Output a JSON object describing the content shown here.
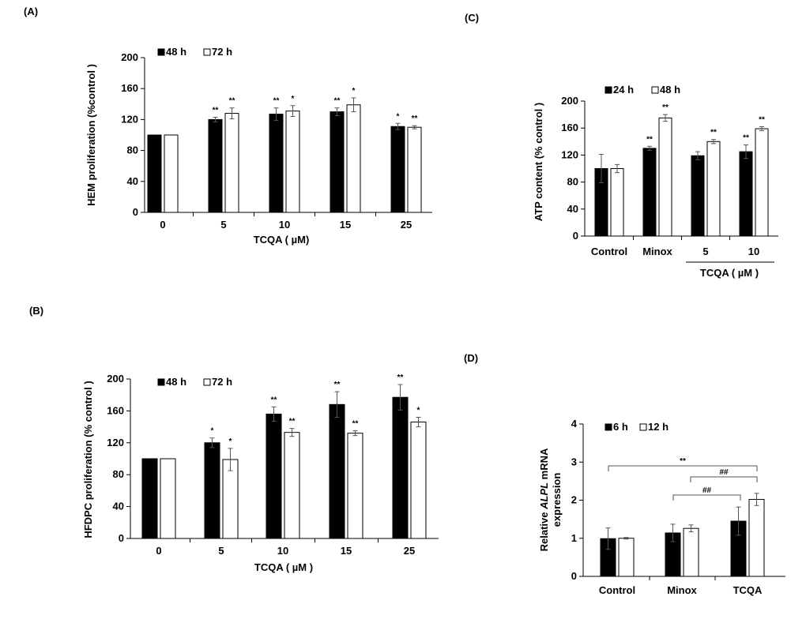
{
  "figure_labels": [
    "(A)",
    "(B)",
    "(C)",
    "(D)"
  ],
  "colors": {
    "series_filled": "#000000",
    "series_open": "#ffffff",
    "outline": "#000000"
  },
  "chart_data": [
    {
      "id": "A",
      "label": "(A)",
      "type": "bar",
      "categories": [
        "0",
        "5",
        "10",
        "15",
        "25"
      ],
      "xlabel": "TCQA ( µM)",
      "ylabel": "HEM proliferation (%control )",
      "ylim": [
        0,
        200
      ],
      "yticks": [
        "0",
        "40",
        "80",
        "120",
        "160",
        "200"
      ],
      "legend": [
        "48 h",
        "72 h"
      ],
      "series": [
        {
          "name": "48 h",
          "values": [
            100,
            120,
            127,
            130,
            111
          ],
          "errors": [
            0,
            3,
            8,
            5,
            4
          ],
          "sig": [
            "",
            "**",
            "**",
            "**",
            "*"
          ]
        },
        {
          "name": "72 h",
          "values": [
            100,
            128,
            131,
            139,
            110
          ],
          "errors": [
            0,
            7,
            7,
            9,
            2
          ],
          "sig": [
            "",
            "**",
            "*",
            "*",
            "**"
          ]
        }
      ]
    },
    {
      "id": "B",
      "label": "(B)",
      "type": "bar",
      "categories": [
        "0",
        "5",
        "10",
        "15",
        "25"
      ],
      "xlabel": "TCQA ( µM )",
      "ylabel": "HFDPC  proliferation (% control )",
      "ylim": [
        0,
        200
      ],
      "yticks": [
        "0",
        "40",
        "80",
        "120",
        "160",
        "200"
      ],
      "legend": [
        "48 h",
        "72 h"
      ],
      "series": [
        {
          "name": "48 h",
          "values": [
            100,
            120,
            156,
            168,
            177
          ],
          "errors": [
            0,
            6,
            9,
            16,
            16
          ],
          "sig": [
            "",
            "*",
            "**",
            "**",
            "**"
          ]
        },
        {
          "name": "72 h",
          "values": [
            100,
            99,
            133,
            132,
            146
          ],
          "errors": [
            0,
            14,
            5,
            3,
            6
          ],
          "sig": [
            "",
            "*",
            "**",
            "**",
            "*"
          ]
        }
      ]
    },
    {
      "id": "C",
      "label": "(C)",
      "type": "bar",
      "categories": [
        "Control",
        "Minox",
        "5",
        "10"
      ],
      "group_label": "TCQA ( µM )",
      "xlabel": "",
      "ylabel": "ATP content (% control )",
      "ylim": [
        0,
        200
      ],
      "yticks": [
        "0",
        "40",
        "80",
        "120",
        "160",
        "200"
      ],
      "legend": [
        "24 h",
        "48 h"
      ],
      "series": [
        {
          "name": "24 h",
          "values": [
            100,
            130,
            119,
            125
          ],
          "errors": [
            21,
            3,
            6,
            10
          ],
          "sig": [
            "",
            "**",
            "",
            "**"
          ]
        },
        {
          "name": "48 h",
          "values": [
            100,
            175,
            140,
            159
          ],
          "errors": [
            6,
            5,
            3,
            3
          ],
          "sig": [
            "",
            "**",
            "**",
            "**"
          ]
        }
      ]
    },
    {
      "id": "D",
      "label": "(D)",
      "type": "bar",
      "categories": [
        "Control",
        "Minox",
        "TCQA"
      ],
      "xlabel": "",
      "ylabel_line1": "Relative ALPL mRNA",
      "ylabel_line2": "expression",
      "ylabel_parts": [
        "Relative ",
        "ALPL",
        " mRNA"
      ],
      "ylim": [
        0,
        4
      ],
      "yticks": [
        "0",
        "1",
        "2",
        "3",
        "4"
      ],
      "legend": [
        "6 h",
        "12 h"
      ],
      "series": [
        {
          "name": "6 h",
          "values": [
            0.99,
            1.14,
            1.45
          ],
          "errors": [
            0.28,
            0.23,
            0.37
          ],
          "sig": [
            "",
            "",
            ""
          ]
        },
        {
          "name": "12 h",
          "values": [
            1.0,
            1.26,
            2.02
          ],
          "errors": [
            0.02,
            0.09,
            0.16
          ],
          "sig": [
            "",
            "",
            ""
          ]
        }
      ],
      "brackets": [
        {
          "from": "Control 6 h",
          "to": "TCQA 12 h",
          "text": "**"
        },
        {
          "from": "Minox 12 h",
          "to": "TCQA 12 h",
          "text": "##"
        },
        {
          "from": "Minox 6 h",
          "to": "TCQA 6 h",
          "text": "##"
        }
      ]
    }
  ]
}
